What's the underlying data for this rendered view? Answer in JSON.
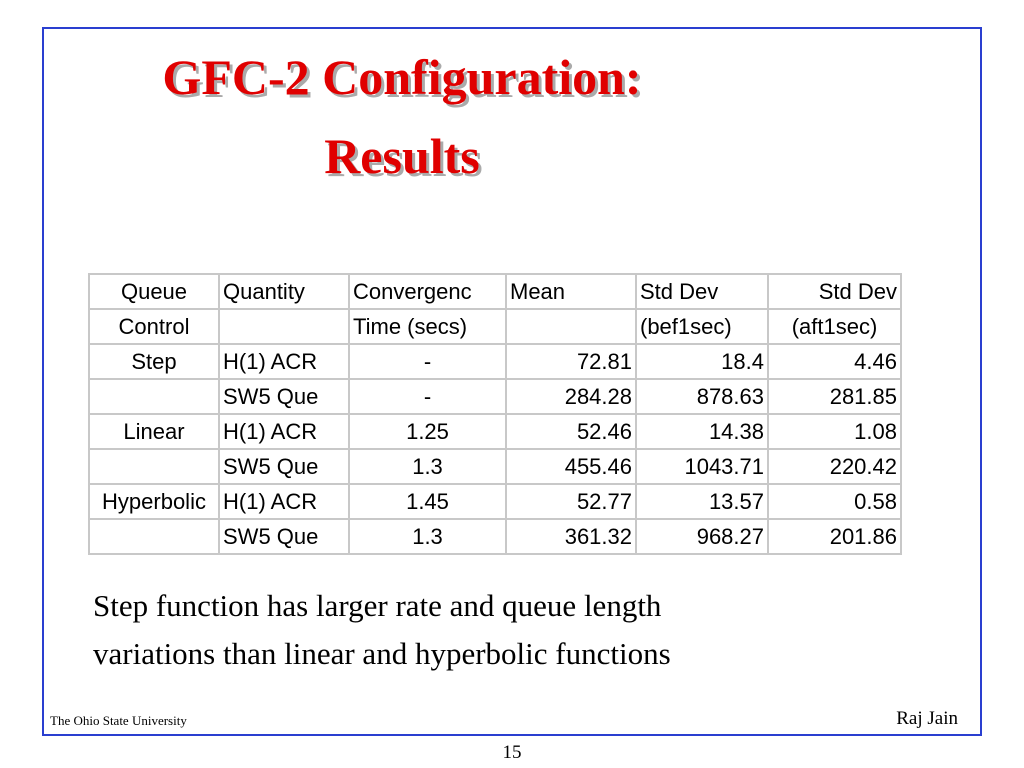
{
  "slide": {
    "title": [
      "GFC-2 Configuration:",
      "Results"
    ],
    "table": {
      "header": [
        [
          "Queue",
          "Quantity",
          "Convergenc",
          "Mean",
          "Std Dev",
          "Std Dev"
        ],
        [
          "Control",
          null,
          "Time (secs)",
          null,
          "(bef1sec)",
          "(aft1sec)"
        ]
      ],
      "rows": [
        [
          "Step",
          "H(1) ACR",
          "-",
          72.81,
          18.4,
          4.46
        ],
        [
          null,
          "SW5 Que",
          "-",
          284.28,
          878.63,
          281.85
        ],
        [
          "Linear",
          "H(1) ACR",
          1.25,
          52.46,
          14.38,
          1.08
        ],
        [
          null,
          "SW5 Que",
          1.3,
          455.46,
          1043.71,
          220.42
        ],
        [
          "Hyperbolic",
          "H(1) ACR",
          1.45,
          52.77,
          13.57,
          0.58
        ],
        [
          null,
          "SW5 Que",
          1.3,
          361.32,
          968.27,
          201.86
        ]
      ]
    },
    "caption": [
      "Step function has larger rate and queue length",
      "variations than linear and hyperbolic functions"
    ],
    "footer_left": "The Ohio State University",
    "footer_right": "Raj Jain",
    "page_number": "15"
  }
}
